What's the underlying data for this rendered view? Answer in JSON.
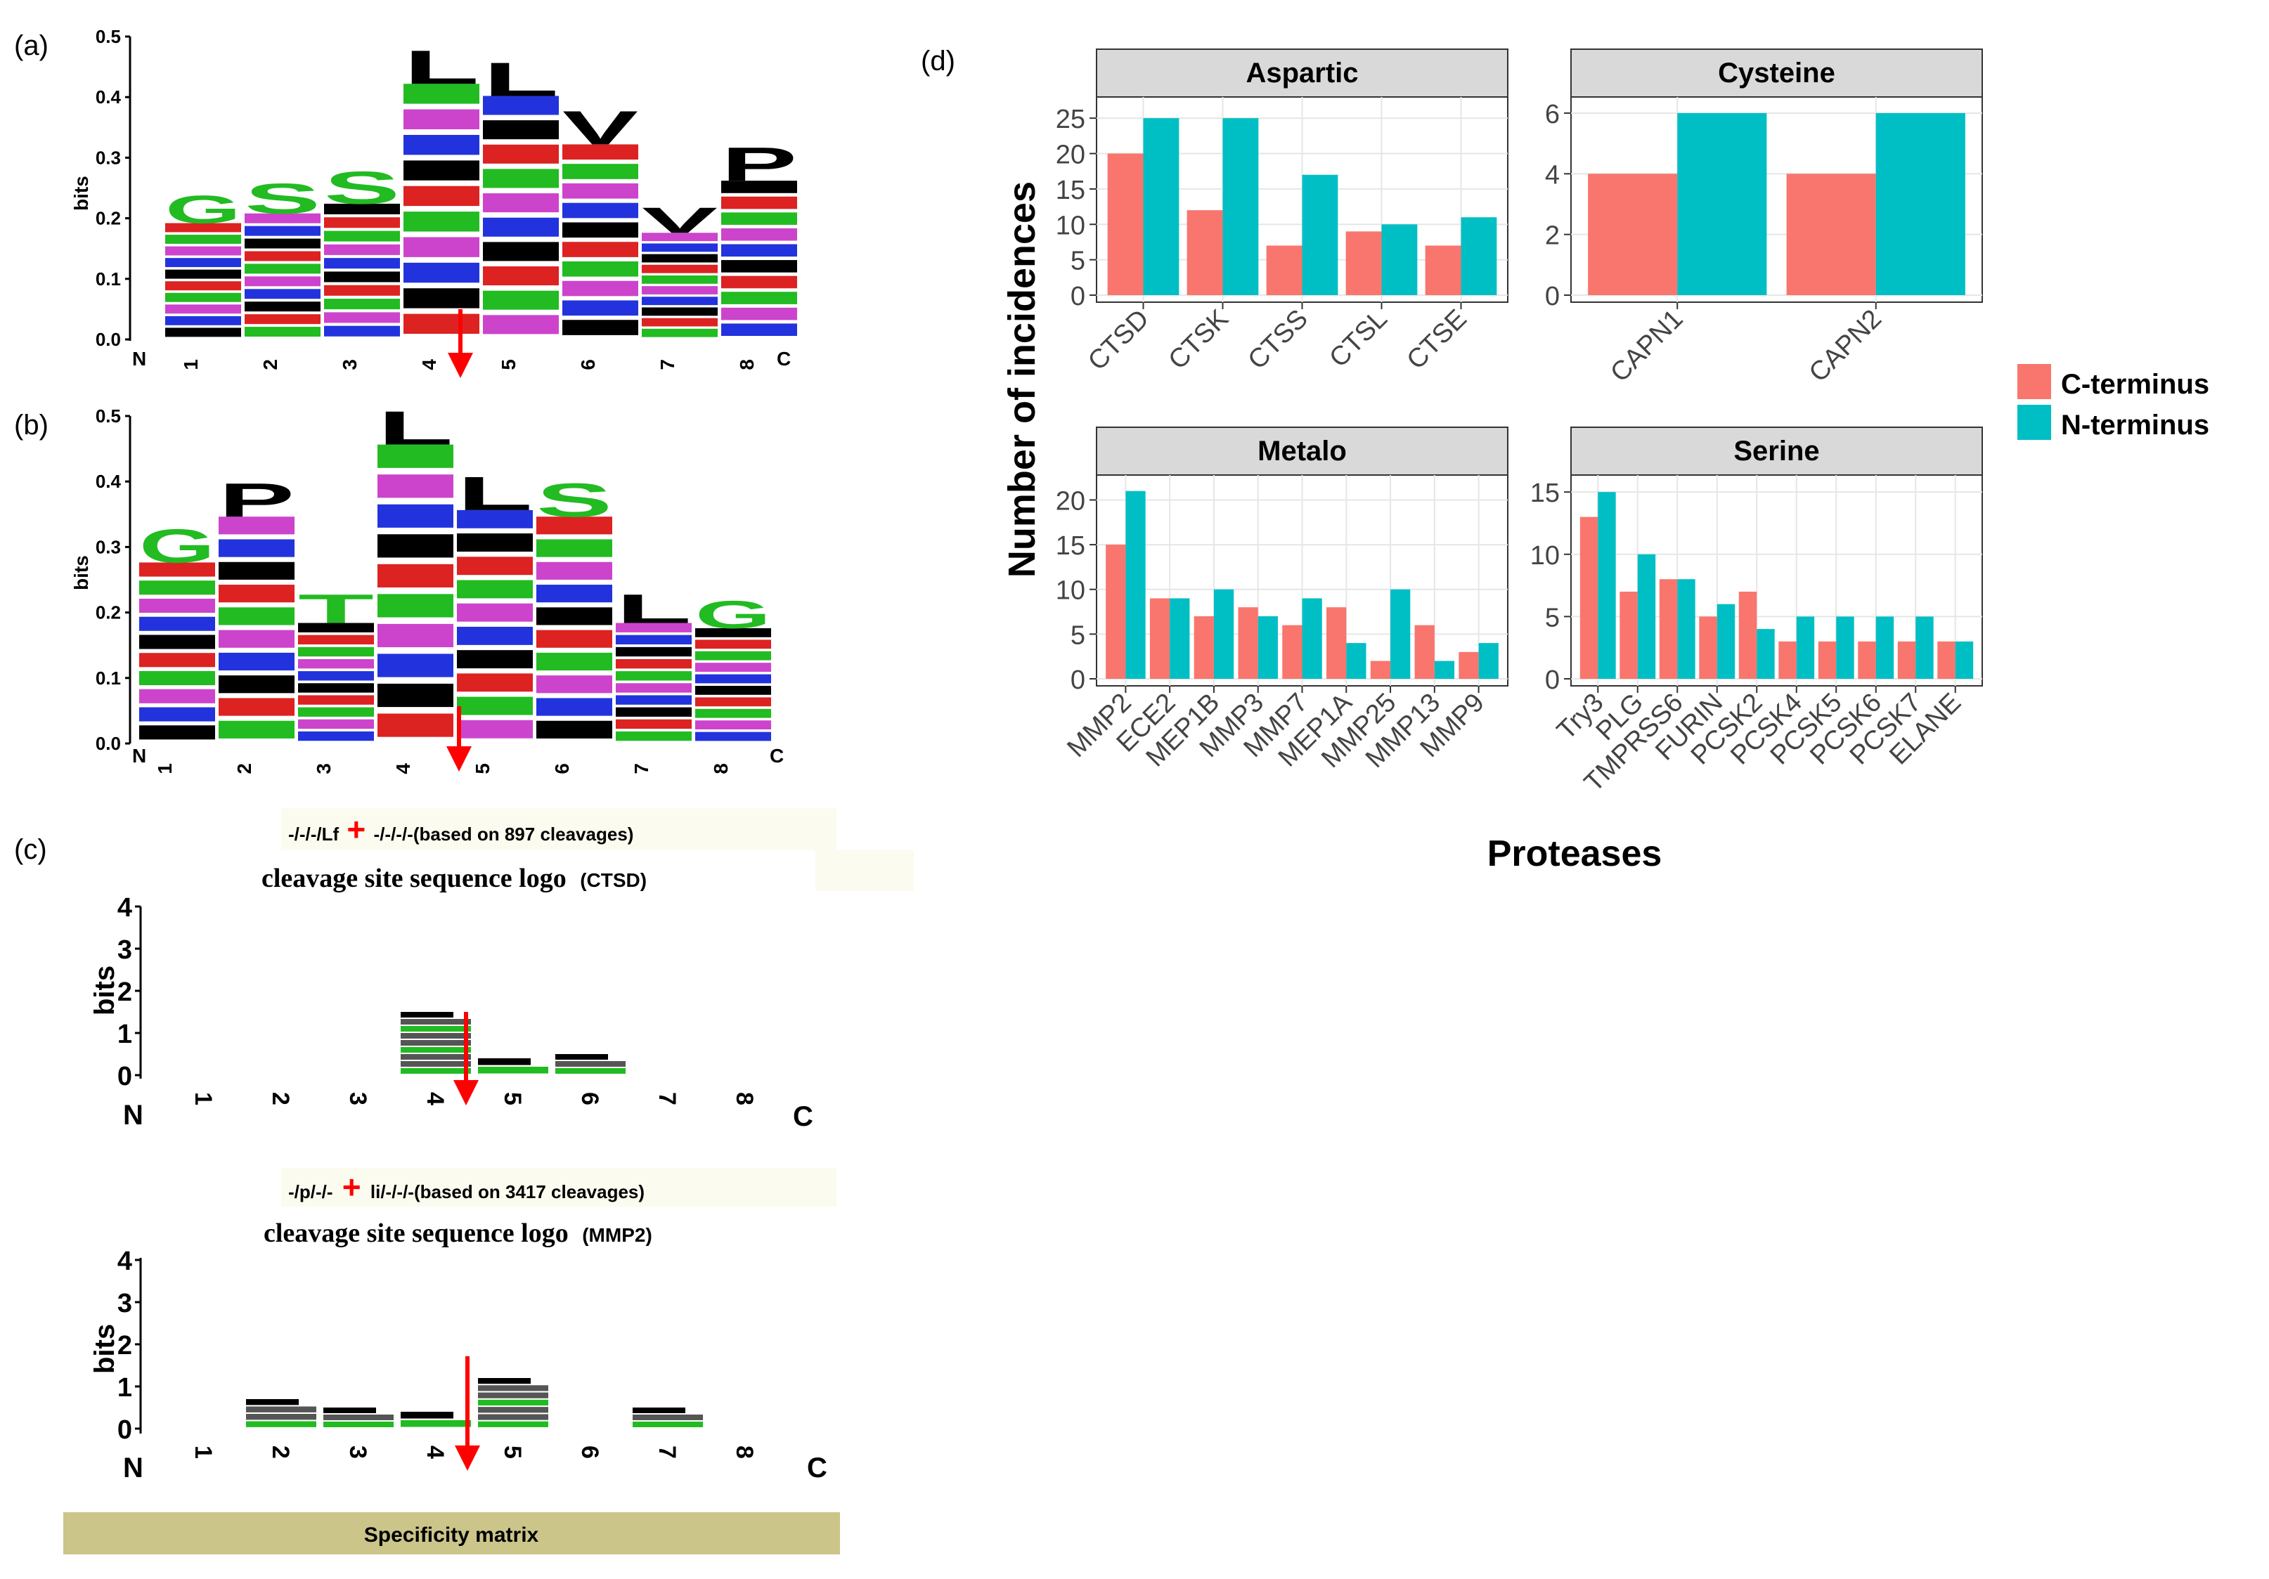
{
  "colors": {
    "c_terminus": "#F8766D",
    "n_terminus": "#00BFC4",
    "facet_strip": "#D9D9D9",
    "grid": "#E6E6E6",
    "arrow": "#FF0000",
    "aa_hydrophobic": "#000000",
    "aa_polar": "#22BB22",
    "aa_basic": "#2233DD",
    "aa_acidic": "#DD2222",
    "aa_amide": "#CC44CC",
    "spec_bar": "#CBC58A",
    "cap_box": "#FBFBEF"
  },
  "panel_labels": {
    "a": "(a)",
    "b": "(b)",
    "c": "(c)",
    "d": "(d)"
  },
  "logo_a": {
    "ylabel": "bits",
    "yticks": [
      "0.0",
      "0.1",
      "0.2",
      "0.3",
      "0.4",
      "0.5"
    ],
    "positions": [
      "1",
      "2",
      "3",
      "4",
      "5",
      "6",
      "7",
      "8"
    ],
    "n_label": "N",
    "c_label": "C",
    "column_heights": [
      0.24,
      0.26,
      0.28,
      0.48,
      0.46,
      0.38,
      0.22,
      0.32
    ],
    "top_letters": [
      "G",
      "S",
      "S",
      "L",
      "L",
      "V",
      "V",
      "P"
    ]
  },
  "logo_b": {
    "ylabel": "bits",
    "yticks": [
      "0.0",
      "0.1",
      "0.2",
      "0.3",
      "0.4",
      "0.5"
    ],
    "positions": [
      "1",
      "2",
      "3",
      "4",
      "5",
      "6",
      "7",
      "8"
    ],
    "n_label": "N",
    "c_label": "C",
    "column_heights": [
      0.33,
      0.4,
      0.23,
      0.51,
      0.41,
      0.4,
      0.23,
      0.22
    ],
    "top_letters": [
      "G",
      "P",
      "T",
      "L",
      "L",
      "S",
      "L",
      "G"
    ]
  },
  "panel_c": {
    "ctsd": {
      "pattern_left": "-/-/-/Lf",
      "plus": "+",
      "pattern_right": "-/-/-/-(based on 897 cleavages)",
      "title_main": "cleavage site sequence logo",
      "title_code": "(CTSD)",
      "ylabel": "bits",
      "yticks": [
        "0",
        "1",
        "2",
        "3",
        "4"
      ],
      "positions": [
        "1",
        "2",
        "3",
        "4",
        "5",
        "6",
        "7",
        "8"
      ],
      "n_label": "N",
      "c_label": "C",
      "column_heights": [
        0,
        0,
        0,
        1.5,
        0.4,
        0.5,
        0,
        0
      ]
    },
    "mmp2": {
      "pattern_left": "-/p/-/-",
      "plus": "+",
      "pattern_right": "li/-/-/-(based on 3417 cleavages)",
      "title_main": "cleavage site sequence logo",
      "title_code": "(MMP2)",
      "ylabel": "bits",
      "yticks": [
        "0",
        "1",
        "2",
        "3",
        "4"
      ],
      "positions": [
        "1",
        "2",
        "3",
        "4",
        "5",
        "6",
        "7",
        "8"
      ],
      "n_label": "N",
      "c_label": "C",
      "column_heights": [
        0,
        0.7,
        0.5,
        0.4,
        1.2,
        0,
        0.5,
        0
      ]
    },
    "spec_matrix_label": "Specificity matrix"
  },
  "chart_data": {
    "type": "bar",
    "ylabel": "Number of incidences",
    "xlabel": "Proteases",
    "legend_position": "right",
    "series_names": [
      "C-terminus",
      "N-terminus"
    ],
    "facets": [
      {
        "title": "Aspartic",
        "categories": [
          "CTSD",
          "CTSK",
          "CTSS",
          "CTSL",
          "CTSE"
        ],
        "c_terminus": [
          20,
          12,
          7,
          9,
          7
        ],
        "n_terminus": [
          25,
          25,
          17,
          10,
          11
        ],
        "ylim": [
          0,
          27
        ],
        "yticks": [
          0,
          5,
          10,
          15,
          20,
          25
        ]
      },
      {
        "title": "Cysteine",
        "categories": [
          "CAPN1",
          "CAPN2"
        ],
        "c_terminus": [
          4,
          4
        ],
        "n_terminus": [
          6,
          6
        ],
        "ylim": [
          0,
          6.3
        ],
        "yticks": [
          0,
          2,
          4,
          6
        ]
      },
      {
        "title": "Metalo",
        "categories": [
          "MMP2",
          "ECE2",
          "MEP1B",
          "MMP3",
          "MMP7",
          "MEP1A",
          "MMP25",
          "MMP13",
          "MMP9"
        ],
        "c_terminus": [
          15,
          9,
          7,
          8,
          6,
          8,
          2,
          6,
          3
        ],
        "n_terminus": [
          21,
          9,
          10,
          7,
          9,
          4,
          10,
          2,
          4
        ],
        "ylim": [
          0,
          22
        ],
        "yticks": [
          0,
          5,
          10,
          15,
          20
        ]
      },
      {
        "title": "Serine",
        "categories": [
          "Try3",
          "PLG",
          "TMPRSS6",
          "FURIN",
          "PCSK2",
          "PCSK4",
          "PCSK5",
          "PCSK6",
          "PCSK7",
          "ELANE"
        ],
        "c_terminus": [
          13,
          7,
          8,
          5,
          7,
          3,
          3,
          3,
          3,
          3
        ],
        "n_terminus": [
          15,
          10,
          8,
          6,
          4,
          5,
          5,
          5,
          5,
          3
        ],
        "ylim": [
          0,
          15.8
        ],
        "yticks": [
          0,
          5,
          10,
          15
        ]
      }
    ]
  }
}
